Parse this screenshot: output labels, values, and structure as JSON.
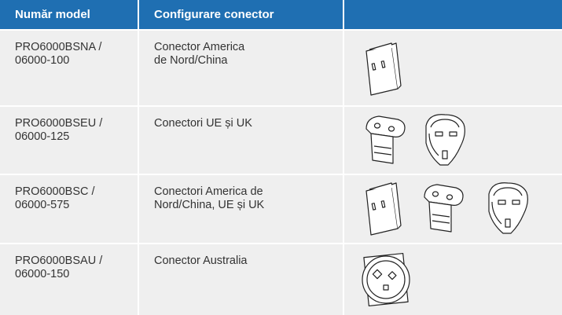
{
  "table": {
    "header": [
      "Număr model",
      "Configurare conector"
    ],
    "rows": [
      [
        "PRO6000BSNA /\n06000-100",
        "Conector America\nde Nord/China"
      ],
      [
        "PRO6000BSEU /\n06000-125",
        "Conectori UE și UK"
      ],
      [
        "PRO6000BSC /\n06000-575",
        "Conectori America de\nNord/China, UE și UK"
      ],
      [
        "PRO6000BSAU /\n06000-150",
        "Conector Australia"
      ]
    ]
  }
}
